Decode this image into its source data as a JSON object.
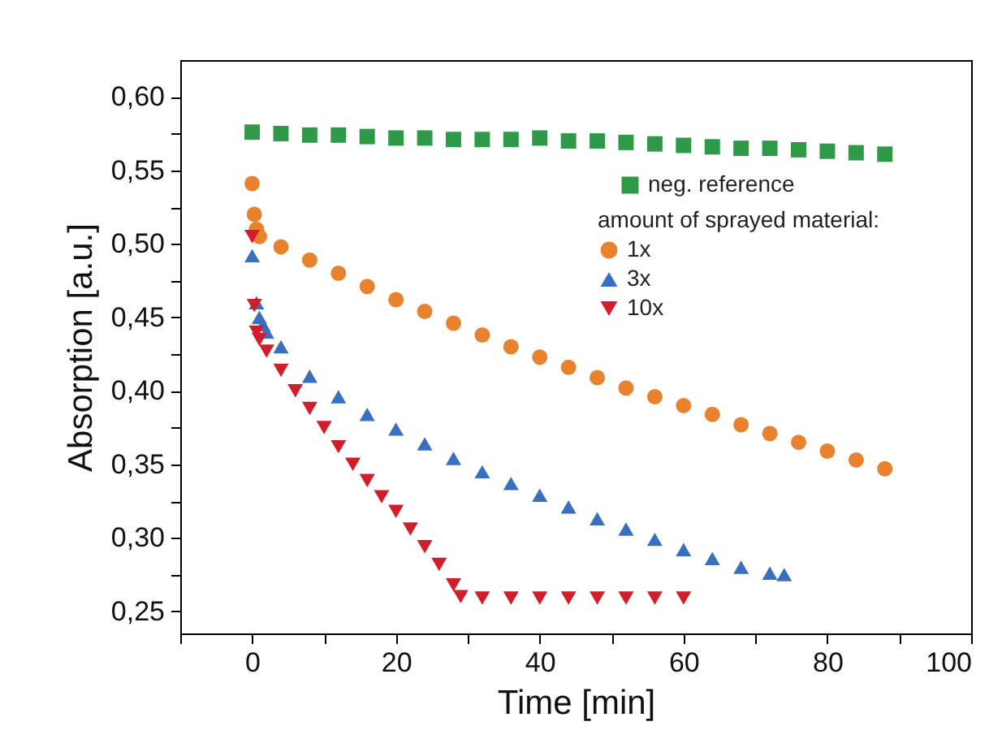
{
  "chart_data": {
    "type": "scatter",
    "xlabel": "Time [min]",
    "ylabel": "Absorption [a.u.]",
    "legend_title": "amount of sprayed material:",
    "legend": "top right",
    "xlim": [
      -10,
      100
    ],
    "ylim": [
      0.235,
      0.625
    ],
    "xticks": [
      {
        "value": -10,
        "label": null
      },
      0,
      {
        "value": 10,
        "label": null
      },
      20,
      {
        "value": 30,
        "label": null
      },
      40,
      {
        "value": 50,
        "label": null
      },
      60,
      {
        "value": 70,
        "label": null
      },
      80,
      {
        "value": 90,
        "label": null
      },
      100
    ],
    "yticks": [
      {
        "value": 0.25,
        "label": "0,25"
      },
      {
        "value": 0.275,
        "label": null
      },
      {
        "value": 0.3,
        "label": "0,30"
      },
      {
        "value": 0.325,
        "label": null
      },
      {
        "value": 0.35,
        "label": "0,35"
      },
      {
        "value": 0.375,
        "label": null
      },
      {
        "value": 0.4,
        "label": "0,40"
      },
      {
        "value": 0.425,
        "label": null
      },
      {
        "value": 0.45,
        "label": "0,45"
      },
      {
        "value": 0.475,
        "label": null
      },
      {
        "value": 0.5,
        "label": "0,50"
      },
      {
        "value": 0.525,
        "label": null
      },
      {
        "value": 0.55,
        "label": "0,55"
      },
      {
        "value": 0.575,
        "label": null
      },
      {
        "value": 0.6,
        "label": "0,60"
      }
    ],
    "series": [
      {
        "name": "neg. reference",
        "color": "#2e9a48",
        "marker": "square",
        "x": [
          0,
          4,
          8,
          12,
          16,
          20,
          24,
          28,
          32,
          36,
          40,
          44,
          48,
          52,
          56,
          60,
          64,
          68,
          72,
          76,
          80,
          84,
          88
        ],
        "values": [
          0.576,
          0.575,
          0.574,
          0.574,
          0.573,
          0.572,
          0.572,
          0.571,
          0.571,
          0.571,
          0.572,
          0.57,
          0.57,
          0.569,
          0.568,
          0.567,
          0.566,
          0.565,
          0.565,
          0.564,
          0.563,
          0.562,
          0.561
        ]
      },
      {
        "name": "1x",
        "color": "#e9822e",
        "marker": "circle",
        "x": [
          0,
          0.3,
          0.6,
          1,
          4,
          8,
          12,
          16,
          20,
          24,
          28,
          32,
          36,
          40,
          44,
          48,
          52,
          56,
          60,
          64,
          68,
          72,
          76,
          80,
          84,
          88
        ],
        "values": [
          0.541,
          0.52,
          0.51,
          0.505,
          0.498,
          0.489,
          0.48,
          0.471,
          0.462,
          0.454,
          0.446,
          0.438,
          0.43,
          0.423,
          0.416,
          0.409,
          0.402,
          0.396,
          0.39,
          0.384,
          0.377,
          0.371,
          0.365,
          0.359,
          0.353,
          0.347
        ]
      },
      {
        "name": "3x",
        "color": "#3a6fc0",
        "marker": "triangle",
        "x": [
          0,
          0.6,
          1,
          1.5,
          2,
          4,
          8,
          12,
          16,
          20,
          24,
          28,
          32,
          36,
          40,
          44,
          48,
          52,
          56,
          60,
          64,
          68,
          72,
          74
        ],
        "values": [
          0.492,
          0.46,
          0.45,
          0.445,
          0.44,
          0.43,
          0.41,
          0.396,
          0.384,
          0.374,
          0.364,
          0.354,
          0.345,
          0.337,
          0.329,
          0.321,
          0.313,
          0.306,
          0.299,
          0.292,
          0.286,
          0.28,
          0.276,
          0.275
        ]
      },
      {
        "name": "10x",
        "color": "#d21e2a",
        "marker": "triangle-down",
        "x": [
          0,
          0.3,
          0.6,
          1,
          2,
          4,
          6,
          8,
          10,
          12,
          14,
          16,
          18,
          20,
          22,
          24,
          26,
          28,
          29,
          32,
          36,
          40,
          44,
          48,
          52,
          56,
          60
        ],
        "values": [
          0.505,
          0.458,
          0.44,
          0.435,
          0.427,
          0.414,
          0.4,
          0.388,
          0.375,
          0.362,
          0.35,
          0.339,
          0.328,
          0.318,
          0.306,
          0.294,
          0.282,
          0.268,
          0.26,
          0.259,
          0.259,
          0.259,
          0.259,
          0.259,
          0.259,
          0.259,
          0.259
        ]
      }
    ]
  }
}
